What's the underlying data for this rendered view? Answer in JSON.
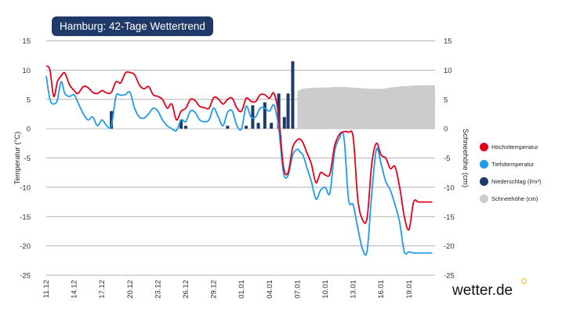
{
  "title": "Hamburg: 42-Tage Wettertrend",
  "brand": "wetter.de",
  "chart_data": {
    "type": "line",
    "title": "Hamburg: 42-Tage Wettertrend",
    "ylabel": "Temperatur (°C)",
    "y2label": "Schneehöhe (cm)",
    "ylim": [
      -25,
      15
    ],
    "y2lim": [
      -25,
      15
    ],
    "yticks": [
      "15",
      "10",
      "5",
      "0",
      "-5",
      "-10",
      "-15",
      "-20",
      "-25"
    ],
    "y2ticks": [
      "15",
      "10",
      "5",
      "0",
      "-5",
      "-10",
      "-15",
      "-20",
      "-25"
    ],
    "xlim": [
      0,
      41.8
    ],
    "x_tick_labels": [
      "11.12",
      "14.12",
      "17.12",
      "20.12",
      "23.12",
      "26.12",
      "29.12",
      "01.01",
      "04.01",
      "07.01",
      "10.01",
      "13.01",
      "16.01",
      "19.01"
    ],
    "grid": true,
    "legend_position": "right",
    "colors": {
      "high": "#e3001b",
      "low": "#1e9be8",
      "precip": "#1f3a68",
      "snow": "#cccccc"
    },
    "series": [
      {
        "name": "Höchsttemperatur",
        "x": [
          0,
          0.4,
          0.8,
          1.2,
          1.6,
          2.0,
          2.5,
          3.0,
          3.4,
          4.0,
          4.5,
          5.0,
          5.5,
          6.0,
          6.5,
          7.0,
          7.5,
          8.0,
          8.5,
          9.0,
          9.5,
          10.0,
          10.5,
          11.0,
          11.5,
          12.0,
          12.5,
          13.0,
          13.5,
          14.0,
          14.5,
          15.0,
          15.5,
          16.0,
          16.5,
          17.0,
          17.5,
          18.0,
          18.5,
          19.0,
          19.5,
          20.0,
          20.5,
          21.0,
          21.5,
          22.0,
          22.5,
          23.0,
          23.5,
          24.0,
          24.5,
          25.0,
          25.5,
          26.0,
          26.5,
          27.0,
          27.3,
          27.6,
          28.0,
          28.5,
          29.0,
          29.5,
          30.0,
          30.5,
          31.0,
          31.5,
          32.0,
          32.5,
          33.0,
          33.5,
          34.0,
          34.5,
          35.0,
          35.5,
          36.0,
          36.5,
          37.0,
          37.5,
          38.0,
          38.5,
          39.0,
          39.5,
          40.0,
          40.5,
          41.0,
          41.5
        ],
        "values": [
          10.7,
          10.0,
          5.5,
          8.0,
          9.0,
          9.5,
          7.5,
          6.5,
          6.0,
          7.2,
          7.0,
          6.2,
          6.0,
          6.5,
          6.1,
          6.2,
          8.0,
          7.8,
          9.5,
          9.6,
          9.2,
          7.5,
          6.8,
          7.2,
          5.8,
          5.5,
          5.0,
          3.5,
          4.2,
          1.5,
          3.0,
          3.5,
          5.0,
          4.8,
          3.8,
          3.6,
          3.5,
          5.3,
          5.1,
          4.2,
          5.0,
          5.2,
          3.5,
          3.0,
          5.2,
          4.7,
          4.6,
          5.8,
          5.8,
          5.2,
          6.0,
          2.0,
          -6.5,
          -7.5,
          -3.2,
          -1.9,
          -1.8,
          -2.4,
          -4.0,
          -6.0,
          -9.2,
          -7.5,
          -7.9,
          -7.7,
          -3.0,
          -1.0,
          -0.5,
          -0.6,
          -1.5,
          -12.0,
          -15.5,
          -15.2,
          -6.0,
          -2.5,
          -4.5,
          -5.0,
          -6.8,
          -6.5,
          -10.0,
          -15.0,
          -17.2,
          -12.5,
          -12.5,
          -12.5,
          -12.5,
          -12.5
        ]
      },
      {
        "name": "Tiefsttemperatur",
        "x": [
          0,
          0.4,
          0.8,
          1.2,
          1.6,
          2.0,
          2.5,
          3.0,
          3.4,
          4.0,
          4.5,
          5.0,
          5.5,
          6.0,
          6.5,
          7.0,
          7.5,
          8.0,
          8.5,
          9.0,
          9.5,
          10.0,
          10.5,
          11.0,
          11.5,
          12.0,
          12.5,
          13.0,
          13.5,
          14.0,
          14.5,
          15.0,
          15.5,
          16.0,
          16.5,
          17.0,
          17.5,
          18.0,
          18.5,
          19.0,
          19.5,
          20.0,
          20.5,
          21.0,
          21.5,
          22.0,
          22.5,
          23.0,
          23.5,
          24.0,
          24.5,
          25.0,
          25.5,
          26.0,
          26.5,
          27.0,
          27.3,
          27.6,
          28.0,
          28.5,
          29.0,
          29.5,
          30.0,
          30.5,
          31.0,
          31.5,
          32.0,
          32.5,
          33.0,
          33.5,
          34.0,
          34.5,
          35.0,
          35.5,
          36.0,
          36.5,
          37.0,
          37.5,
          38.0,
          38.5,
          39.0,
          39.5,
          40.0,
          40.5,
          41.0,
          41.5
        ],
        "values": [
          9.0,
          5.0,
          4.2,
          4.9,
          8.0,
          6.0,
          5.5,
          5.8,
          4.5,
          2.5,
          1.5,
          2.0,
          0.5,
          1.5,
          0.5,
          0.5,
          5.5,
          5.7,
          5.8,
          6.2,
          3.5,
          2.0,
          1.8,
          2.5,
          3.5,
          3.0,
          1.5,
          0.5,
          0.0,
          -0.3,
          1.5,
          1.2,
          3.0,
          2.8,
          1.5,
          1.2,
          1.5,
          3.5,
          2.0,
          0.5,
          2.8,
          3.0,
          0.5,
          0.0,
          3.8,
          2.0,
          2.0,
          3.5,
          3.5,
          3.0,
          4.0,
          0.0,
          -7.5,
          -8.0,
          -4.5,
          -3.5,
          -4.0,
          -4.5,
          -6.5,
          -9.0,
          -12.0,
          -10.5,
          -10.0,
          -11.0,
          -4.0,
          -1.7,
          -1.4,
          -12.0,
          -13.0,
          -17.0,
          -20.5,
          -20.8,
          -11.0,
          -3.5,
          -6.0,
          -9.0,
          -10.5,
          -13.0,
          -16.0,
          -21.0,
          -21.0,
          -21.2,
          -21.2,
          -21.2,
          -21.2,
          -21.2
        ]
      },
      {
        "name": "Niederschlag (l/m²)",
        "x": [
          7.0,
          14.5,
          15.0,
          19.5,
          21.5,
          22.2,
          22.8,
          23.5,
          24.2,
          25.0,
          25.6,
          26.0,
          26.5
        ],
        "values": [
          3,
          1.5,
          0.5,
          0.5,
          0.5,
          4.0,
          1.0,
          4.5,
          1.0,
          6.0,
          2.0,
          6.0,
          11.5
        ]
      },
      {
        "name": "Schneehöhe (cm)",
        "x": [
          27.0,
          27.5,
          28.0,
          29.0,
          30.0,
          31.0,
          32.0,
          33.0,
          34.0,
          35.0,
          36.0,
          37.0,
          38.0,
          39.0,
          40.0,
          41.0,
          41.8
        ],
        "values": [
          6.4,
          6.8,
          6.9,
          7.0,
          7.0,
          7.1,
          7.1,
          7.0,
          6.9,
          6.8,
          6.8,
          7.0,
          7.2,
          7.3,
          7.4,
          7.4,
          7.4
        ]
      }
    ]
  }
}
